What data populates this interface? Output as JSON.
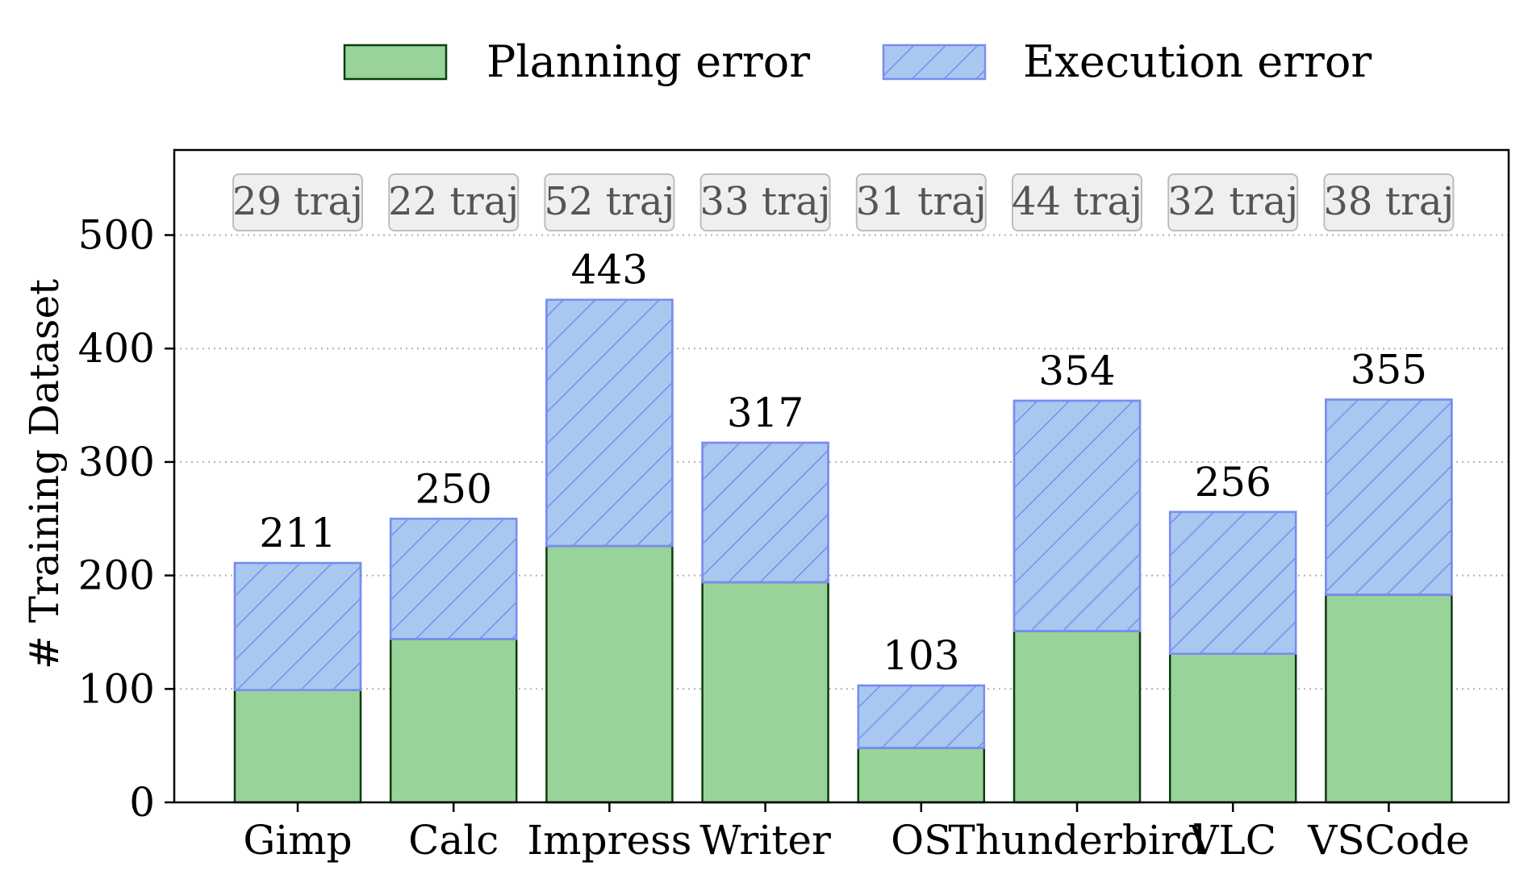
{
  "chart_data": {
    "type": "bar",
    "stacked": true,
    "categories": [
      "Gimp",
      "Calc",
      "Impress",
      "Writer",
      "OS",
      "Thunderbird",
      "VLC",
      "VSCode"
    ],
    "series": [
      {
        "name": "Planning error",
        "values": [
          99,
          144,
          226,
          194,
          48,
          151,
          131,
          183
        ],
        "color": "#98d39a",
        "edge": "#0d3b0f"
      },
      {
        "name": "Execution error",
        "values": [
          112,
          106,
          217,
          123,
          55,
          203,
          125,
          172
        ],
        "color": "#a9c8f0",
        "edge": "#7a8cf0",
        "hatch": true
      }
    ],
    "totals": [
      "211",
      "250",
      "443",
      "317",
      "103",
      "354",
      "256",
      "355"
    ],
    "traj_labels": [
      "29 traj",
      "22 traj",
      "52 traj",
      "33 traj",
      "31 traj",
      "44 traj",
      "32 traj",
      "38 traj"
    ],
    "ylabel": "# Training Dataset",
    "xlabel": "",
    "ylim": [
      0,
      575
    ],
    "yticks": [
      0,
      100,
      200,
      300,
      400,
      500
    ],
    "grid": "y-dotted",
    "legend": "top-center"
  }
}
